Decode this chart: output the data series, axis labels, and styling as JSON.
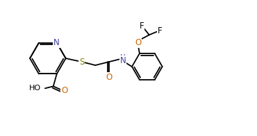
{
  "bg_color": "#ffffff",
  "line_color": "#000000",
  "atom_color_N": "#4040a0",
  "atom_color_O": "#cc6600",
  "atom_color_S": "#808000",
  "atom_color_F": "#000000",
  "figsize": [
    3.7,
    1.96
  ],
  "dpi": 100,
  "xlim": [
    0,
    37
  ],
  "ylim": [
    0,
    19.6
  ]
}
